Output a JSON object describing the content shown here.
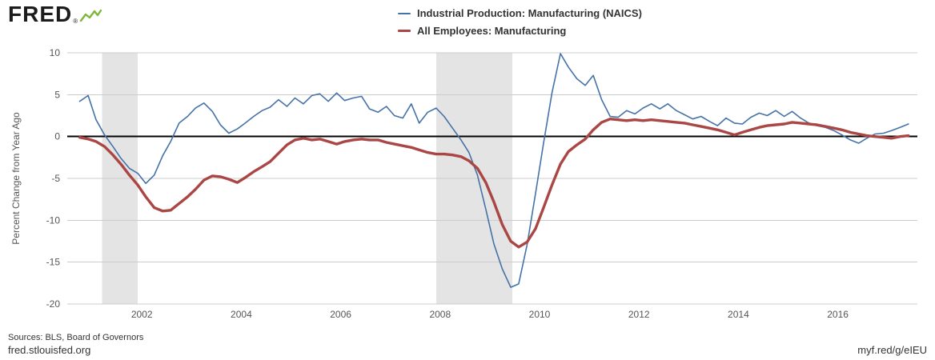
{
  "header": {
    "brand": "FRED",
    "reg": "®"
  },
  "legend": {
    "items": [
      {
        "label": "Industrial Production: Manufacturing (NAICS)"
      },
      {
        "label": "All Employees: Manufacturing"
      }
    ]
  },
  "footer": {
    "sources": "Sources: BLS, Board of Governors",
    "site": "fred.stlouisfed.org",
    "shortlink": "myf.red/g/eIEU"
  },
  "colors": {
    "brand_green": "#7db83a",
    "series_blue": "#4572a7",
    "series_red": "#aa4643"
  },
  "chart_data": {
    "type": "line",
    "title": "",
    "xlabel": "",
    "ylabel": "Percent Change from Year Ago",
    "xlim": [
      2000.5,
      2017.6
    ],
    "ylim": [
      -20,
      10
    ],
    "yticks": [
      10,
      5,
      0,
      -5,
      -10,
      -15,
      -20
    ],
    "xticks": [
      2002,
      2004,
      2006,
      2008,
      2010,
      2012,
      2014,
      2016
    ],
    "grid": true,
    "legend_position": "top",
    "band_color": "#e4e4e4",
    "grid_color": "#cccccc",
    "zero_line_color": "#000000",
    "tick_color": "#555555",
    "recession_bands": [
      [
        2001.2,
        2001.92
      ],
      [
        2007.92,
        2009.45
      ]
    ],
    "x": [
      2000.75,
      2000.92,
      2001.08,
      2001.25,
      2001.42,
      2001.58,
      2001.75,
      2001.92,
      2002.08,
      2002.25,
      2002.42,
      2002.58,
      2002.75,
      2002.92,
      2003.08,
      2003.25,
      2003.42,
      2003.58,
      2003.75,
      2003.92,
      2004.08,
      2004.25,
      2004.42,
      2004.58,
      2004.75,
      2004.92,
      2005.08,
      2005.25,
      2005.42,
      2005.58,
      2005.75,
      2005.92,
      2006.08,
      2006.25,
      2006.42,
      2006.58,
      2006.75,
      2006.92,
      2007.08,
      2007.25,
      2007.42,
      2007.58,
      2007.75,
      2007.92,
      2008.08,
      2008.25,
      2008.42,
      2008.58,
      2008.75,
      2008.92,
      2009.08,
      2009.25,
      2009.42,
      2009.58,
      2009.75,
      2009.92,
      2010.08,
      2010.25,
      2010.42,
      2010.58,
      2010.75,
      2010.92,
      2011.08,
      2011.25,
      2011.42,
      2011.58,
      2011.75,
      2011.92,
      2012.08,
      2012.25,
      2012.42,
      2012.58,
      2012.75,
      2012.92,
      2013.08,
      2013.25,
      2013.42,
      2013.58,
      2013.75,
      2013.92,
      2014.08,
      2014.25,
      2014.42,
      2014.58,
      2014.75,
      2014.92,
      2015.08,
      2015.25,
      2015.42,
      2015.58,
      2015.75,
      2015.92,
      2016.08,
      2016.25,
      2016.42,
      2016.58,
      2016.75,
      2016.92,
      2017.08,
      2017.25,
      2017.42
    ],
    "series": [
      {
        "key": "industrial-production",
        "name": "Industrial Production: Manufacturing (NAICS)",
        "color": "#4572a7",
        "width": 1.6,
        "values": [
          4.2,
          4.9,
          2.0,
          0.2,
          -1.2,
          -2.6,
          -3.8,
          -4.4,
          -5.6,
          -4.6,
          -2.3,
          -0.6,
          1.6,
          2.4,
          3.4,
          4.0,
          3.0,
          1.4,
          0.4,
          0.9,
          1.6,
          2.4,
          3.1,
          3.5,
          4.4,
          3.6,
          4.6,
          3.9,
          4.9,
          5.1,
          4.2,
          5.2,
          4.3,
          4.6,
          4.8,
          3.3,
          2.9,
          3.6,
          2.5,
          2.2,
          3.9,
          1.6,
          2.9,
          3.4,
          2.4,
          1.0,
          -0.4,
          -1.9,
          -4.6,
          -8.7,
          -12.8,
          -15.8,
          -18.0,
          -17.6,
          -12.9,
          -6.8,
          -0.8,
          5.2,
          9.9,
          8.3,
          6.9,
          6.1,
          7.3,
          4.4,
          2.4,
          2.3,
          3.1,
          2.7,
          3.4,
          3.9,
          3.3,
          3.9,
          3.1,
          2.6,
          2.1,
          2.4,
          1.8,
          1.3,
          2.2,
          1.6,
          1.5,
          2.3,
          2.8,
          2.5,
          3.1,
          2.4,
          3.0,
          2.2,
          1.6,
          1.3,
          1.1,
          0.7,
          0.2,
          -0.4,
          -0.8,
          -0.2,
          0.3,
          0.4,
          0.7,
          1.1,
          1.5
        ]
      },
      {
        "key": "all-employees",
        "name": "All Employees: Manufacturing",
        "color": "#aa4643",
        "width": 3.4,
        "values": [
          -0.1,
          -0.3,
          -0.6,
          -1.2,
          -2.2,
          -3.3,
          -4.6,
          -5.8,
          -7.2,
          -8.5,
          -8.9,
          -8.8,
          -8.0,
          -7.2,
          -6.3,
          -5.2,
          -4.7,
          -4.8,
          -5.1,
          -5.5,
          -4.9,
          -4.2,
          -3.6,
          -3.0,
          -2.0,
          -1.0,
          -0.4,
          -0.2,
          -0.4,
          -0.3,
          -0.6,
          -0.9,
          -0.6,
          -0.4,
          -0.3,
          -0.4,
          -0.4,
          -0.7,
          -0.9,
          -1.1,
          -1.3,
          -1.6,
          -1.9,
          -2.1,
          -2.1,
          -2.2,
          -2.4,
          -2.9,
          -3.8,
          -5.5,
          -7.8,
          -10.5,
          -12.5,
          -13.2,
          -12.6,
          -11.0,
          -8.5,
          -5.8,
          -3.3,
          -1.8,
          -1.0,
          -0.3,
          0.8,
          1.7,
          2.1,
          2.0,
          1.9,
          2.0,
          1.9,
          2.0,
          1.9,
          1.8,
          1.7,
          1.6,
          1.4,
          1.2,
          1.0,
          0.8,
          0.5,
          0.2,
          0.5,
          0.8,
          1.1,
          1.3,
          1.4,
          1.5,
          1.7,
          1.6,
          1.5,
          1.4,
          1.2,
          1.0,
          0.8,
          0.5,
          0.3,
          0.1,
          0.0,
          -0.1,
          -0.2,
          0.0,
          0.1
        ]
      }
    ]
  }
}
